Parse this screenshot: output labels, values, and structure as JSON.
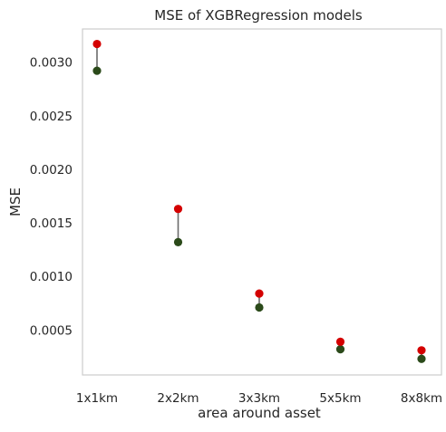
{
  "chart_data": {
    "type": "scatter",
    "title": "MSE of XGBRegression models",
    "xlabel": "area around asset",
    "ylabel": "MSE",
    "categories": [
      "1x1km",
      "2x2km",
      "3x3km",
      "5x5km",
      "8x8km"
    ],
    "y_ticks": [
      "0.0005",
      "0.0010",
      "0.0015",
      "0.0020",
      "0.0025",
      "0.0030"
    ],
    "ylim": [
      8e-05,
      0.00331
    ],
    "grid": false,
    "series": [
      {
        "values": [
          0.00317,
          0.00163,
          0.00084,
          0.00039,
          0.00031
        ],
        "color": "#d40000"
      },
      {
        "values": [
          0.00292,
          0.00132,
          0.00071,
          0.00032,
          0.00023
        ],
        "color": "#2b4a1a"
      }
    ],
    "connector_color": "#6b6b6b"
  }
}
